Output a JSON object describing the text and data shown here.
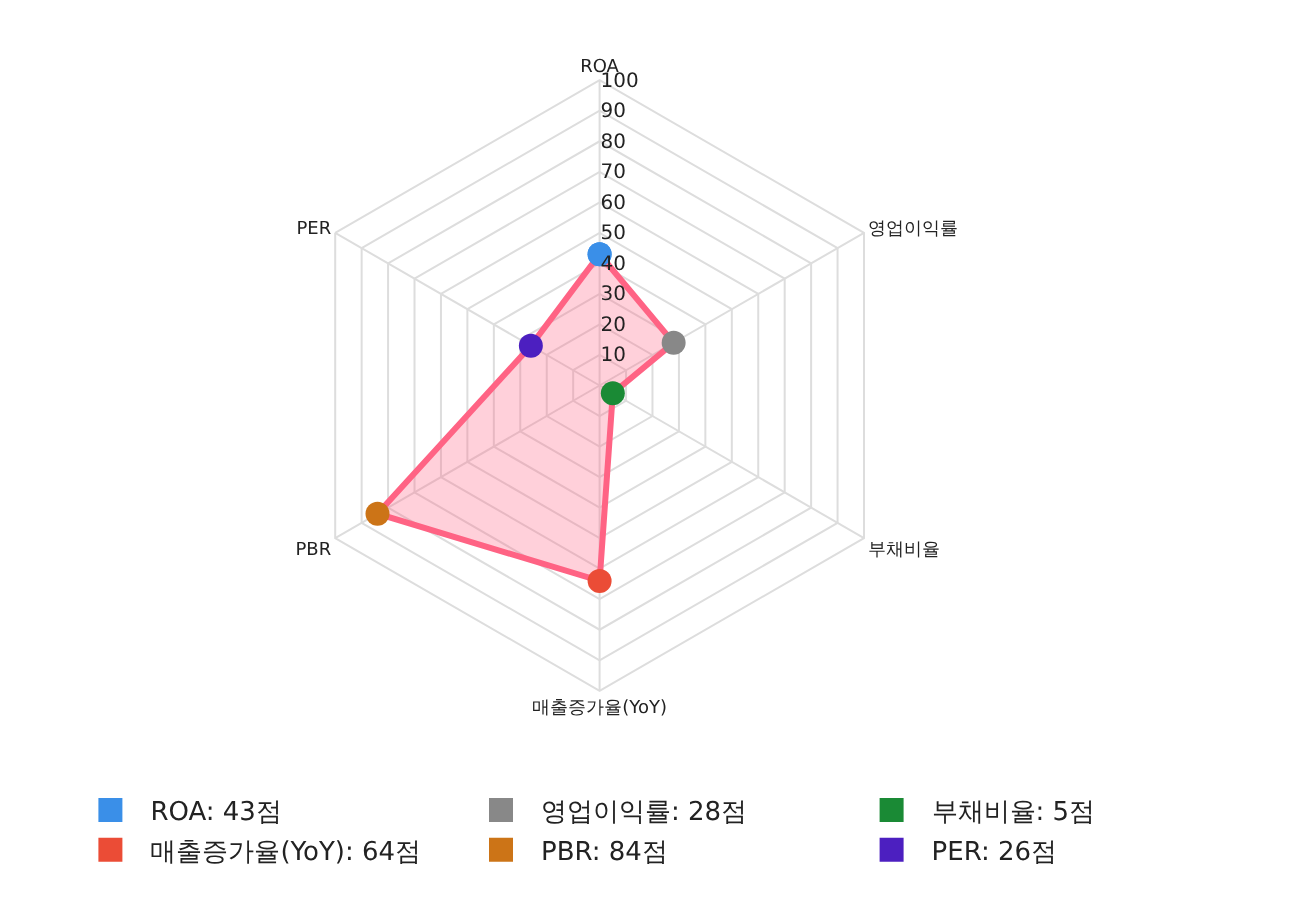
{
  "chart_data": {
    "type": "radar",
    "categories": [
      "ROA",
      "영업이익률",
      "부채비율",
      "매출증가율(YoY)",
      "PBR",
      "PER"
    ],
    "series": [
      {
        "color": "#ff6384",
        "values": [
          43,
          28,
          5,
          64,
          84,
          26
        ],
        "colors": [
          "#3a8fe8",
          "#888888",
          "#1a8a35",
          "#eb4c36",
          "#cc7417",
          "#4c1fc0"
        ]
      }
    ],
    "annotations": [
      "ROA: 43점",
      "영업이익률: 28점",
      "부채비율: 5점",
      "매출증가율(YoY): 64점",
      "PBR: 84점",
      "PER: 26점"
    ],
    "ylim": [
      0,
      100
    ],
    "yticks": [
      10,
      20,
      30,
      40,
      50,
      60,
      70,
      80,
      90,
      100
    ],
    "grid": true,
    "marker": "circle",
    "line_style": "solid"
  }
}
